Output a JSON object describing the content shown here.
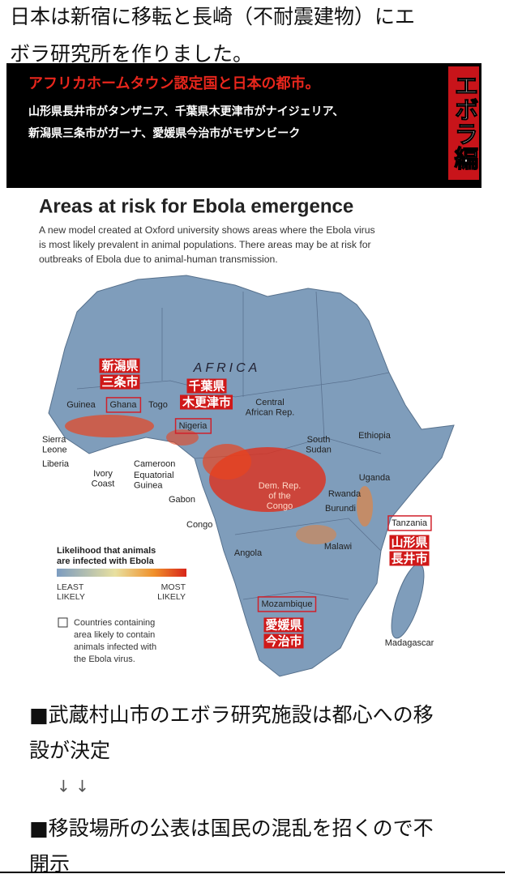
{
  "post": {
    "title_lines": [
      "日本は新宿に移転と長崎（不耐震建物）にエ",
      "ボラ研究所を作りました。"
    ]
  },
  "banner": {
    "title": "アフリカホームタウン認定国と日本の都市。",
    "lines": [
      "山形県長井市がタンザニア、千葉県木更津市がナイジェリア、",
      "新潟県三条市がガーナ、愛媛県今治市がモザンビーク"
    ],
    "tag": "エボラ編"
  },
  "map": {
    "title": "Areas at risk for Ebola emergence",
    "description_lines": [
      "A new model created at Oxford university shows areas where the Ebola virus",
      "is most likely prevalent in animal populations. There areas may be at risk for",
      "outbreaks of Ebola due to animal-human transmission."
    ],
    "continent": "AFRICA",
    "countries": [
      {
        "lines": [
          "Guinea"
        ]
      },
      {
        "lines": [
          "Ghana"
        ],
        "boxed": true
      },
      {
        "lines": [
          "Togo"
        ]
      },
      {
        "lines": [
          "Nigeria"
        ],
        "boxed": true
      },
      {
        "lines": [
          "Central",
          "African Rep."
        ]
      },
      {
        "lines": [
          "Sierra",
          "Leone"
        ]
      },
      {
        "lines": [
          "Liberia"
        ]
      },
      {
        "lines": [
          "Ivory",
          "Coast"
        ]
      },
      {
        "lines": [
          "Cameroon"
        ]
      },
      {
        "lines": [
          "Equatorial",
          "Guinea"
        ]
      },
      {
        "lines": [
          "Gabon"
        ]
      },
      {
        "lines": [
          "Congo"
        ]
      },
      {
        "lines": [
          "Dem. Rep.",
          "of the",
          "Congo"
        ]
      },
      {
        "lines": [
          "South",
          "Sudan"
        ]
      },
      {
        "lines": [
          "Ethiopia"
        ]
      },
      {
        "lines": [
          "Uganda"
        ]
      },
      {
        "lines": [
          "Rwanda"
        ]
      },
      {
        "lines": [
          "Burundi"
        ]
      },
      {
        "lines": [
          "Tanzania"
        ],
        "boxed": true
      },
      {
        "lines": [
          "Malawi"
        ]
      },
      {
        "lines": [
          "Angola"
        ]
      },
      {
        "lines": [
          "Mozambique"
        ],
        "boxed": true
      },
      {
        "lines": [
          "Madagascar"
        ]
      }
    ],
    "city_tags": [
      {
        "lines": [
          "新潟県",
          "三条市"
        ]
      },
      {
        "lines": [
          "千葉県",
          "木更津市"
        ]
      },
      {
        "lines": [
          "山形県",
          "長井市"
        ]
      },
      {
        "lines": [
          "愛媛県",
          "今治市"
        ]
      }
    ],
    "legend": {
      "title_lines": [
        "Likelihood that animals",
        "are infected with Ebola"
      ],
      "least_lines": [
        "LEAST",
        "LIKELY"
      ],
      "most_lines": [
        "MOST",
        "LIKELY"
      ],
      "note_lines": [
        "Countries containing",
        "area likely to contain",
        "animals infected with",
        "the Ebola virus."
      ]
    }
  },
  "body": {
    "first": {
      "lines": [
        "■武蔵村山市のエボラ研究施設は都心への移",
        "設が決定"
      ]
    },
    "arrows": "↓ ↓",
    "second": {
      "lines": [
        "■移設場所の公表は国民の混乱を招くので不",
        "開示"
      ]
    }
  }
}
